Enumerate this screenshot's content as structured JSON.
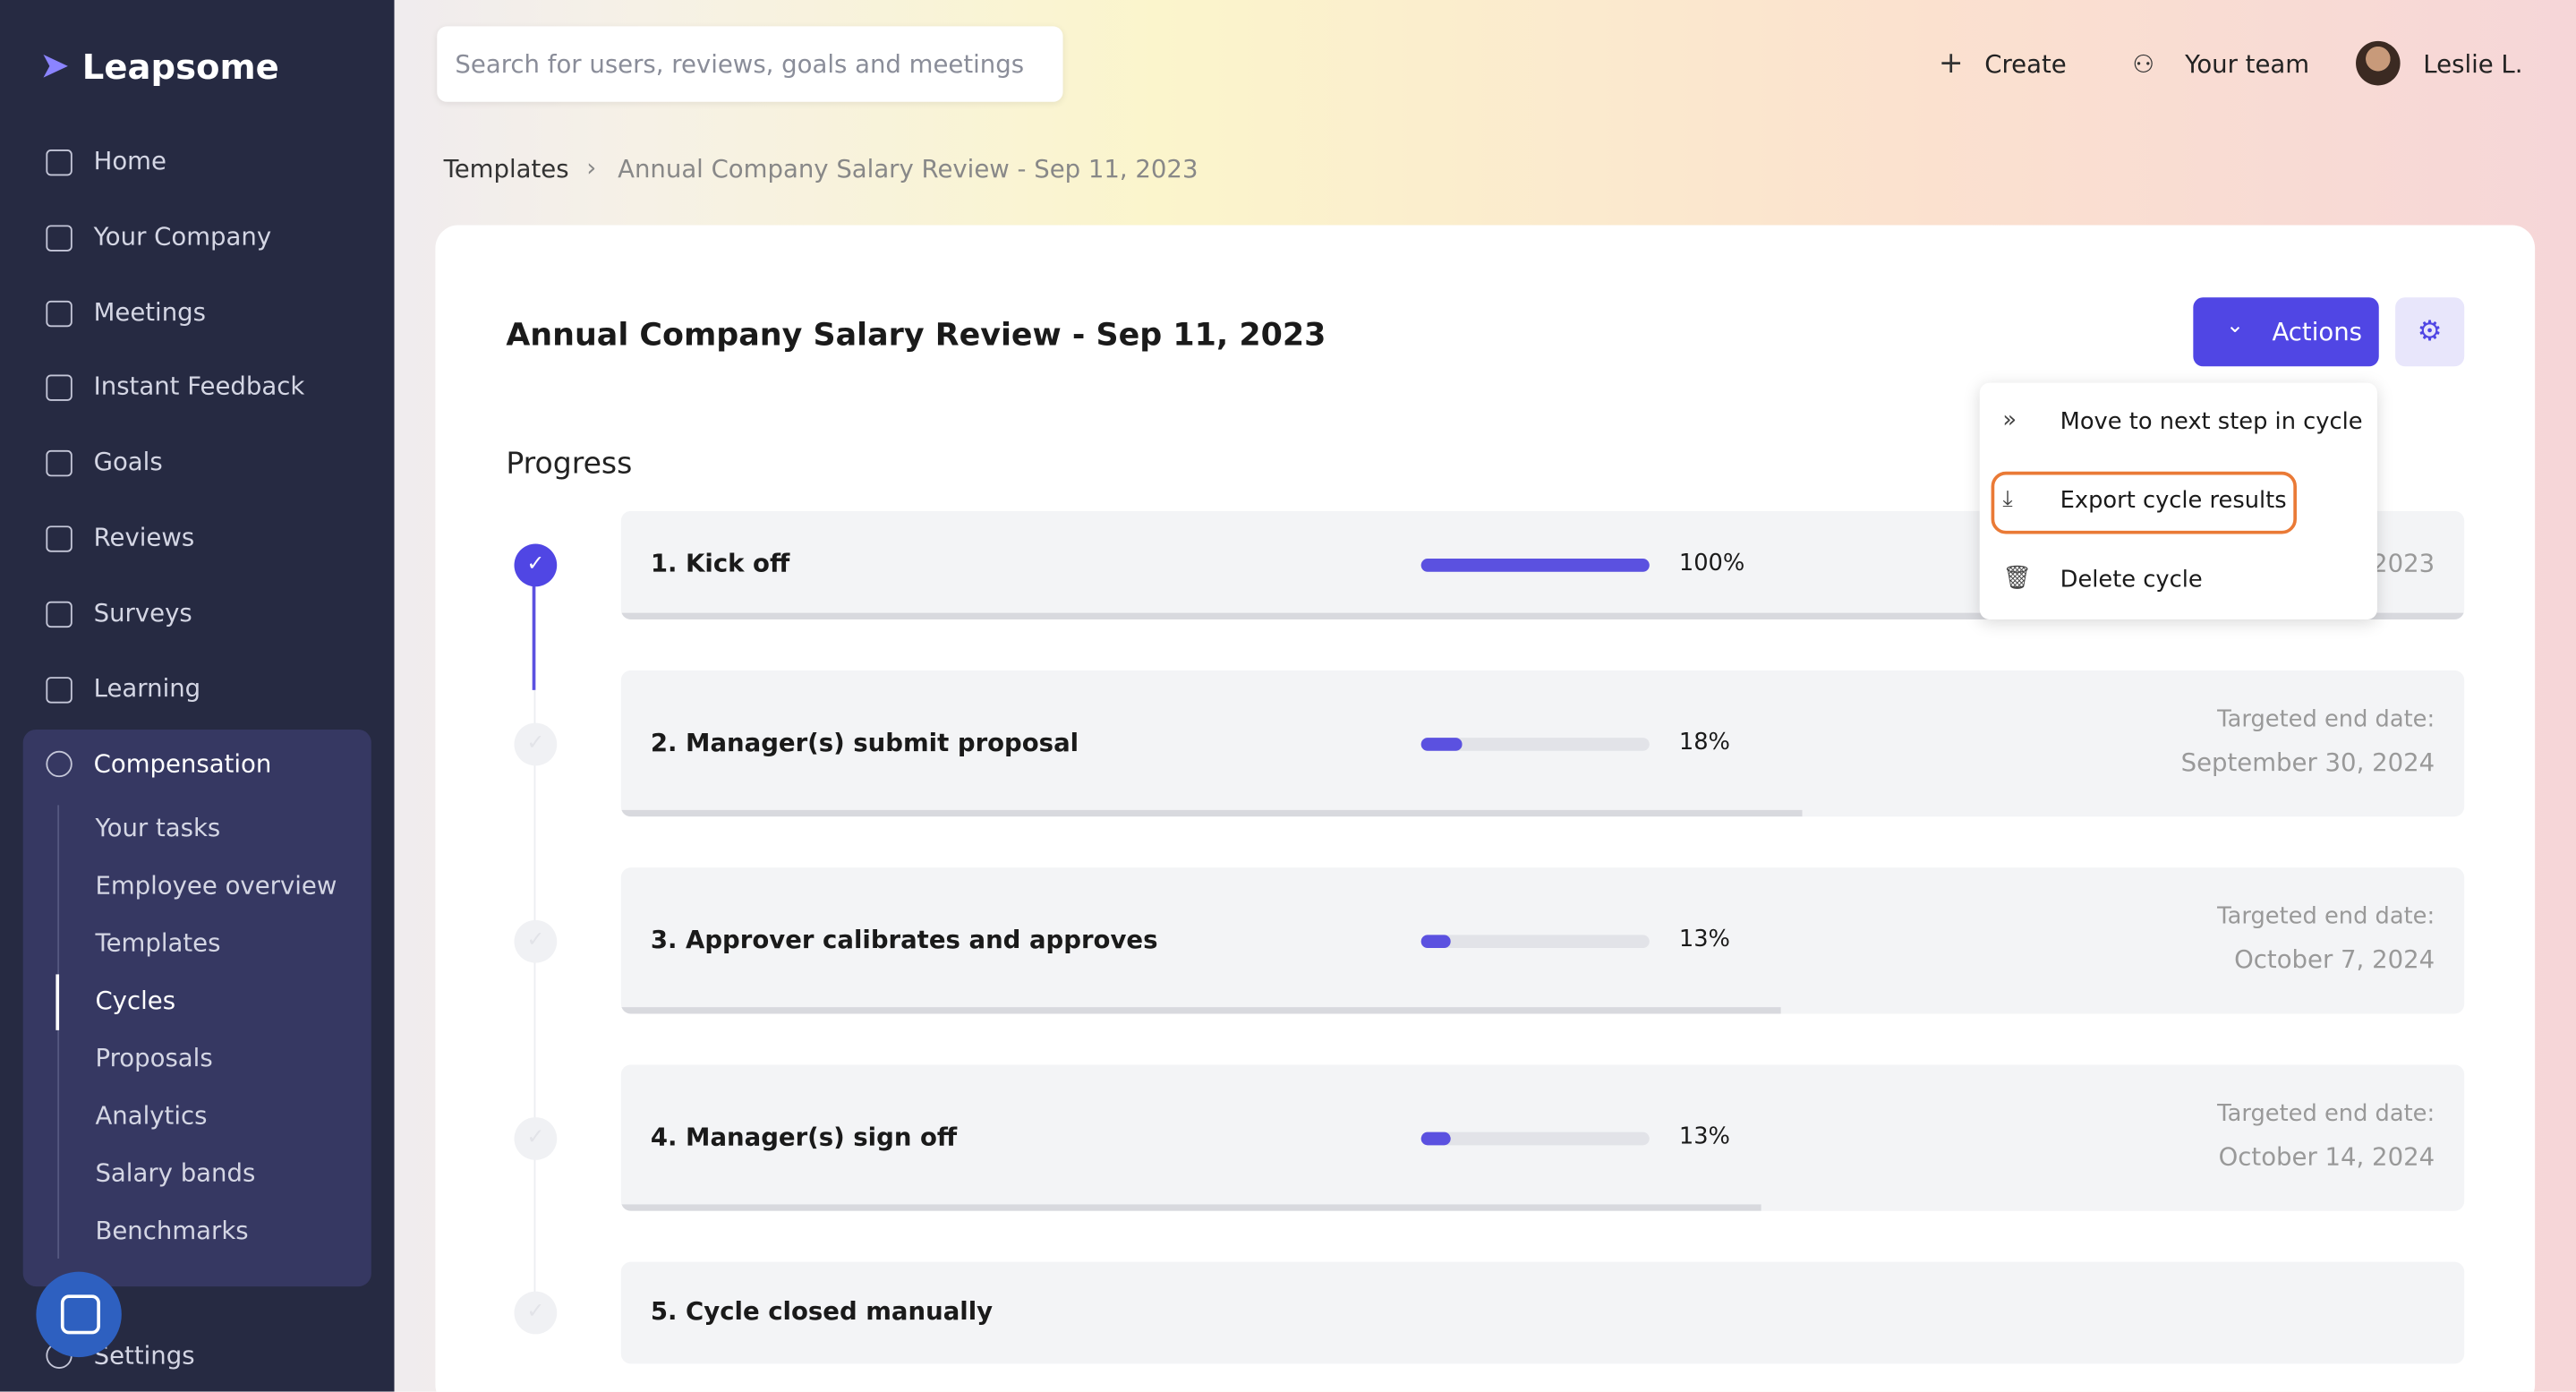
{
  "sidebar": {
    "logo": "Leapsome",
    "nav": [
      "Home",
      "Your Company",
      "Meetings",
      "Instant Feedback",
      "Goals",
      "Reviews",
      "Surveys",
      "Learning"
    ],
    "section": "Compensation",
    "subnav": [
      "Your tasks",
      "Employee overview",
      "Templates",
      "Cycles",
      "Proposals",
      "Analytics",
      "Salary bands",
      "Benchmarks"
    ],
    "active": "Cycles",
    "settings": "Settings"
  },
  "header": {
    "search_placeholder": "Search for users, reviews, goals and meetings",
    "create": "Create",
    "team": "Your team",
    "user": "Leslie L."
  },
  "breadcrumb": {
    "parent": "Templates",
    "current": "Annual Company Salary Review - Sep 11, 2023"
  },
  "page": {
    "title": "Annual Company Salary Review - Sep 11, 2023",
    "actions": "Actions",
    "progress_heading": "Progress"
  },
  "menu": {
    "items": [
      "Move to next step in cycle",
      "Export cycle results",
      "Delete cycle"
    ]
  },
  "steps": [
    {
      "name": "1. Kick off",
      "percent": 100,
      "percent_label": "100%",
      "date": "2023"
    },
    {
      "name": "2. Manager(s) submit proposal",
      "percent": 18,
      "percent_label": "18%",
      "date_label": "Targeted end date:",
      "date": "September 30, 2024"
    },
    {
      "name": "3. Approver calibrates and approves",
      "percent": 13,
      "percent_label": "13%",
      "date_label": "Targeted end date:",
      "date": "October 7, 2024"
    },
    {
      "name": "4. Manager(s) sign off",
      "percent": 13,
      "percent_label": "13%",
      "date_label": "Targeted end date:",
      "date": "October 14, 2024"
    },
    {
      "name": "5. Cycle closed manually"
    }
  ]
}
